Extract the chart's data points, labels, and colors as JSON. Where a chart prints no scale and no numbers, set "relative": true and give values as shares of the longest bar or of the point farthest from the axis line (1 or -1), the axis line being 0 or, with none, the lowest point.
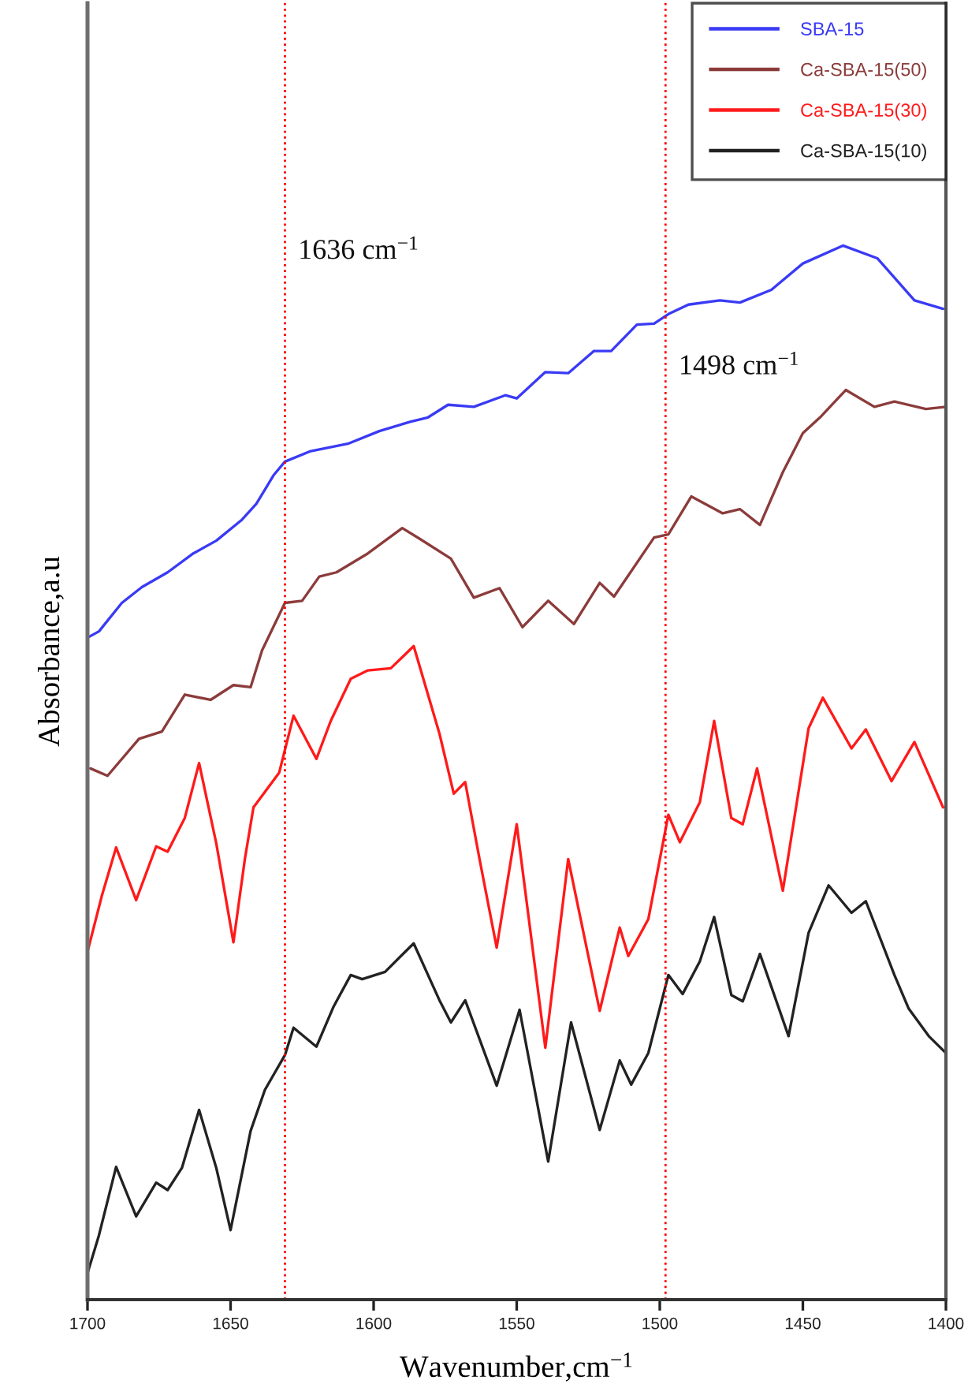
{
  "chart_data": {
    "type": "line",
    "relative": true,
    "xlabel": "Wavenumber,cm$^{−1}$",
    "ylabel": "Absorbance,a.u",
    "xlim": [
      1700,
      1400
    ],
    "xticks": [
      1700,
      1650,
      1600,
      1550,
      1500,
      1450,
      1400
    ],
    "legend": "top right",
    "line_style": "solid",
    "ref_lines": [
      {
        "axis": "x",
        "value": 1631,
        "label": "1636 cm$^{−1}$",
        "color": "#ff0000",
        "line_style": "dotted"
      },
      {
        "axis": "x",
        "value": 1498,
        "label": "1498 cm$^{−1}$",
        "color": "#ff0000",
        "line_style": "dotted"
      }
    ],
    "series": [
      {
        "name": "SBA-15",
        "color": "#3a3af5",
        "x": [
          1700,
          1696,
          1688,
          1681,
          1672,
          1663,
          1655,
          1646,
          1641,
          1635,
          1631,
          1622,
          1609,
          1598,
          1587,
          1581,
          1574,
          1565,
          1554,
          1550,
          1540,
          1532,
          1523,
          1517,
          1508,
          1502,
          1497,
          1490,
          1479,
          1472,
          1461,
          1450,
          1436,
          1424,
          1411,
          1401
        ],
        "values": [
          0.628,
          0.634,
          0.661,
          0.676,
          0.69,
          0.708,
          0.72,
          0.74,
          0.755,
          0.782,
          0.795,
          0.805,
          0.812,
          0.824,
          0.833,
          0.837,
          0.849,
          0.847,
          0.858,
          0.855,
          0.88,
          0.879,
          0.9,
          0.9,
          0.925,
          0.926,
          0.935,
          0.944,
          0.948,
          0.946,
          0.958,
          0.983,
          1.0,
          0.988,
          0.948,
          0.94
        ]
      },
      {
        "name": "Ca-SBA-15(50)",
        "color": "#8c3b3b",
        "x": [
          1699,
          1693,
          1682,
          1674,
          1666,
          1657,
          1649,
          1643,
          1639,
          1631,
          1625,
          1619,
          1613,
          1602,
          1590,
          1584,
          1573,
          1565,
          1556,
          1548,
          1539,
          1530,
          1521,
          1516,
          1502,
          1497,
          1489,
          1478,
          1472,
          1465,
          1457,
          1450,
          1444,
          1435,
          1425,
          1418,
          1407,
          1400
        ],
        "values": [
          0.504,
          0.497,
          0.532,
          0.539,
          0.574,
          0.569,
          0.583,
          0.581,
          0.616,
          0.661,
          0.663,
          0.686,
          0.69,
          0.708,
          0.732,
          0.722,
          0.703,
          0.666,
          0.675,
          0.638,
          0.663,
          0.641,
          0.68,
          0.667,
          0.723,
          0.726,
          0.762,
          0.746,
          0.75,
          0.735,
          0.785,
          0.822,
          0.837,
          0.863,
          0.847,
          0.852,
          0.845,
          0.847
        ]
      },
      {
        "name": "Ca-SBA-15(30)",
        "color": "#ff1a1a",
        "x": [
          1700,
          1695,
          1690,
          1683,
          1676,
          1672,
          1666,
          1661,
          1655,
          1649,
          1645,
          1642,
          1633,
          1628,
          1620,
          1615,
          1608,
          1602,
          1594,
          1586,
          1577,
          1572,
          1568,
          1563,
          1557,
          1550,
          1540,
          1532,
          1521,
          1514,
          1511,
          1504,
          1497,
          1493,
          1486,
          1481,
          1475,
          1471,
          1466,
          1457,
          1448,
          1443,
          1433,
          1428,
          1419,
          1411,
          1401
        ],
        "values": [
          0.33,
          0.383,
          0.429,
          0.379,
          0.43,
          0.425,
          0.457,
          0.509,
          0.433,
          0.339,
          0.418,
          0.467,
          0.5,
          0.554,
          0.513,
          0.549,
          0.589,
          0.597,
          0.599,
          0.62,
          0.537,
          0.48,
          0.491,
          0.418,
          0.334,
          0.451,
          0.239,
          0.418,
          0.274,
          0.353,
          0.326,
          0.361,
          0.46,
          0.434,
          0.472,
          0.549,
          0.457,
          0.451,
          0.504,
          0.388,
          0.542,
          0.571,
          0.523,
          0.541,
          0.492,
          0.529,
          0.467
        ]
      },
      {
        "name": "Ca-SBA-15(10)",
        "color": "#222222",
        "x": [
          1700,
          1696,
          1690,
          1683,
          1676,
          1672,
          1667,
          1661,
          1655,
          1650,
          1643,
          1638,
          1631,
          1628,
          1620,
          1614,
          1608,
          1604,
          1596,
          1586,
          1577,
          1573,
          1568,
          1557,
          1549,
          1539,
          1531,
          1521,
          1514,
          1510,
          1504,
          1497,
          1492,
          1486,
          1481,
          1475,
          1471,
          1465,
          1455,
          1448,
          1441,
          1433,
          1428,
          1418,
          1413,
          1406,
          1400
        ],
        "values": [
          0.025,
          0.061,
          0.126,
          0.079,
          0.111,
          0.104,
          0.125,
          0.18,
          0.125,
          0.066,
          0.16,
          0.199,
          0.232,
          0.258,
          0.24,
          0.278,
          0.308,
          0.304,
          0.311,
          0.338,
          0.284,
          0.263,
          0.284,
          0.203,
          0.275,
          0.131,
          0.263,
          0.161,
          0.227,
          0.204,
          0.234,
          0.308,
          0.29,
          0.321,
          0.363,
          0.289,
          0.283,
          0.328,
          0.25,
          0.348,
          0.393,
          0.367,
          0.378,
          0.308,
          0.276,
          0.25,
          0.234
        ]
      }
    ]
  }
}
